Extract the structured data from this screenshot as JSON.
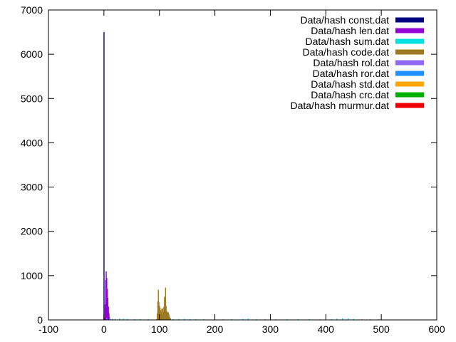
{
  "chart_data": {
    "type": "bar",
    "title": "",
    "xlabel": "",
    "ylabel": "",
    "xlim": [
      -100,
      600
    ],
    "ylim": [
      0,
      7000
    ],
    "x_ticks": [
      -100,
      0,
      100,
      200,
      300,
      400,
      500,
      600
    ],
    "y_ticks": [
      0,
      1000,
      2000,
      3000,
      4000,
      5000,
      6000,
      7000
    ],
    "grid": false,
    "legend_position": "top-right",
    "series": [
      {
        "name": "Data/hash const.dat",
        "color": "#00007f",
        "bins": [
          [
            0,
            6500
          ]
        ]
      },
      {
        "name": "Data/hash len.dat",
        "color": "#9400d3",
        "bins": [
          [
            1,
            50
          ],
          [
            2,
            350
          ],
          [
            3,
            900
          ],
          [
            4,
            1100
          ],
          [
            5,
            950
          ],
          [
            6,
            700
          ],
          [
            7,
            500
          ],
          [
            8,
            300
          ],
          [
            9,
            150
          ],
          [
            10,
            60
          ],
          [
            11,
            20
          ]
        ]
      },
      {
        "name": "Data/hash sum.dat",
        "color": "#00e0e0",
        "bins": [
          [
            5,
            40
          ],
          [
            10,
            30
          ],
          [
            15,
            25
          ],
          [
            20,
            25
          ],
          [
            28,
            30
          ],
          [
            35,
            30
          ],
          [
            42,
            25
          ],
          [
            55,
            20
          ],
          [
            65,
            15
          ],
          [
            80,
            20
          ],
          [
            95,
            20
          ],
          [
            110,
            15
          ],
          [
            125,
            20
          ],
          [
            135,
            25
          ],
          [
            145,
            25
          ],
          [
            155,
            20
          ],
          [
            165,
            15
          ],
          [
            180,
            15
          ],
          [
            200,
            15
          ],
          [
            215,
            15
          ],
          [
            230,
            15
          ],
          [
            250,
            25
          ],
          [
            260,
            30
          ],
          [
            275,
            20
          ],
          [
            290,
            20
          ],
          [
            310,
            15
          ],
          [
            330,
            15
          ],
          [
            350,
            15
          ],
          [
            370,
            15
          ],
          [
            390,
            15
          ],
          [
            410,
            20
          ],
          [
            420,
            30
          ],
          [
            430,
            35
          ],
          [
            440,
            35
          ],
          [
            450,
            25
          ],
          [
            465,
            15
          ],
          [
            480,
            15
          ],
          [
            495,
            15
          ]
        ]
      },
      {
        "name": "Data/hash code.dat",
        "color": "#9d7a22",
        "bins": [
          [
            96,
            150
          ],
          [
            97,
            420
          ],
          [
            98,
            680
          ],
          [
            99,
            400
          ],
          [
            100,
            320
          ],
          [
            101,
            280
          ],
          [
            102,
            220
          ],
          [
            103,
            180
          ],
          [
            104,
            250
          ],
          [
            105,
            120
          ],
          [
            106,
            260
          ],
          [
            107,
            180
          ],
          [
            108,
            300
          ],
          [
            109,
            520
          ],
          [
            110,
            460
          ],
          [
            111,
            730
          ],
          [
            112,
            320
          ],
          [
            113,
            200
          ],
          [
            114,
            160
          ],
          [
            115,
            180
          ],
          [
            116,
            170
          ],
          [
            117,
            120
          ],
          [
            118,
            80
          ],
          [
            119,
            50
          ],
          [
            120,
            30
          ]
        ]
      },
      {
        "name": "Data/hash rol.dat",
        "color": "#8c6bf0",
        "bins": [
          [
            20,
            5
          ],
          [
            100,
            5
          ],
          [
            200,
            5
          ],
          [
            300,
            5
          ],
          [
            400,
            5
          ],
          [
            500,
            5
          ]
        ]
      },
      {
        "name": "Data/hash ror.dat",
        "color": "#1e90ff",
        "bins": [
          [
            30,
            5
          ],
          [
            130,
            5
          ],
          [
            230,
            5
          ],
          [
            330,
            5
          ],
          [
            430,
            5
          ]
        ]
      },
      {
        "name": "Data/hash std.dat",
        "color": "#ffa500",
        "bins": [
          [
            40,
            5
          ],
          [
            140,
            5
          ],
          [
            240,
            5
          ],
          [
            340,
            5
          ],
          [
            440,
            5
          ]
        ]
      },
      {
        "name": "Data/hash crc.dat",
        "color": "#00b000",
        "bins": [
          [
            50,
            6
          ],
          [
            150,
            6
          ],
          [
            250,
            6
          ],
          [
            350,
            6
          ],
          [
            450,
            6
          ]
        ]
      },
      {
        "name": "Data/hash murmur.dat",
        "color": "#ee0000",
        "bins": [
          [
            10,
            8
          ],
          [
            60,
            8
          ],
          [
            110,
            8
          ],
          [
            160,
            8
          ],
          [
            210,
            8
          ],
          [
            260,
            8
          ],
          [
            310,
            8
          ],
          [
            360,
            8
          ],
          [
            410,
            8
          ],
          [
            460,
            8
          ],
          [
            500,
            8
          ]
        ]
      }
    ]
  }
}
